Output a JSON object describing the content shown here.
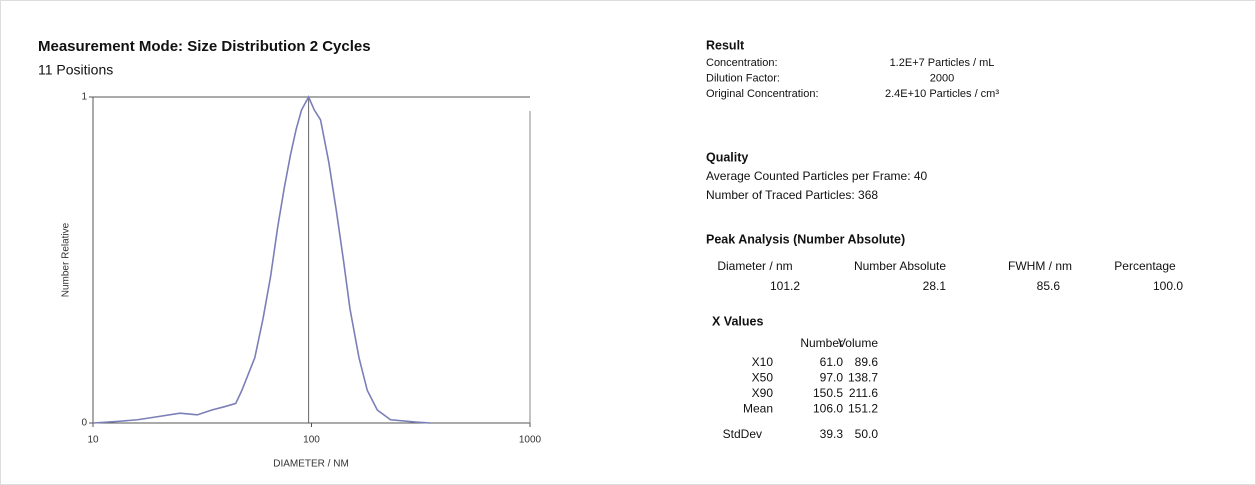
{
  "chart_data": {
    "type": "line",
    "title": "Measurement Mode: Size Distribution 2 Cycles",
    "subtitle": "11 Positions",
    "x_label": "DIAMETER / NM",
    "y_label": "Number Relative",
    "x": [
      10,
      13,
      16,
      20,
      25,
      30,
      35,
      40,
      45,
      48,
      55,
      60,
      65,
      70,
      75,
      80,
      85,
      90,
      97,
      103,
      110,
      120,
      130,
      140,
      150,
      165,
      180,
      200,
      230,
      300,
      350
    ],
    "series": [
      {
        "color": "#7b7fb8",
        "values": [
          0,
          0.005,
          0.01,
          0.02,
          0.03,
          0.025,
          0.04,
          0.05,
          0.06,
          0.1,
          0.2,
          0.32,
          0.45,
          0.6,
          0.72,
          0.82,
          0.9,
          0.96,
          1.0,
          0.96,
          0.93,
          0.8,
          0.65,
          0.5,
          0.35,
          0.2,
          0.1,
          0.04,
          0.01,
          0.003,
          0
        ]
      }
    ],
    "xlim": [
      10,
      1000
    ],
    "xticks": [
      10,
      100,
      1000
    ],
    "xscale": "log",
    "ylim": [
      0,
      1
    ],
    "yticks": [
      0,
      1
    ],
    "marker_x": 97
  },
  "report": {
    "result": {
      "title": "Result",
      "rows": [
        [
          "Concentration:",
          "1.2E+7 Particles / mL"
        ],
        [
          "Dilution Factor:",
          "2000"
        ],
        [
          "Original Concentration:",
          "2.4E+10 Particles / cm³"
        ]
      ]
    },
    "quality": {
      "title": "Quality",
      "rows": [
        "Average Counted Particles per Frame: 40",
        "Number of Traced Particles: 368"
      ]
    },
    "peak": {
      "title": "Peak Analysis (Number Absolute)",
      "headers": [
        "Diameter / nm",
        "Number Absolute",
        "FWHM / nm",
        "Percentage"
      ],
      "rows": [
        [
          "101.2",
          "28.1",
          "85.6",
          "100.0"
        ]
      ]
    },
    "xvalues": {
      "title": "X Values",
      "headers": [
        "Number",
        "Volume"
      ],
      "rows": [
        [
          "X10",
          "61.0",
          "89.6"
        ],
        [
          "X50",
          "97.0",
          "138.7"
        ],
        [
          "X90",
          "150.5",
          "211.6"
        ],
        [
          "Mean",
          "106.0",
          "151.2"
        ],
        [
          "StdDev",
          "39.3",
          "50.0"
        ]
      ]
    }
  }
}
